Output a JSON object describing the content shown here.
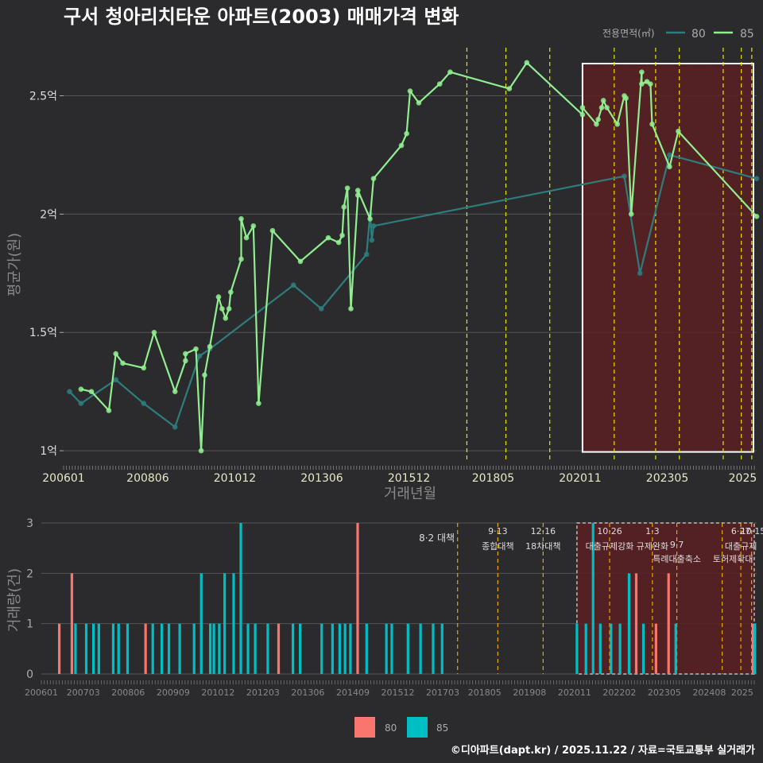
{
  "title": "구서 청아리치타운 아파트(2003) 매매가격 변화",
  "credit": "©디아파트(dapt.kr) / 2025.11.22 / 자료=국토교통부 실거래가",
  "colors": {
    "s80_line": "#2e7d7d",
    "s85_line": "#90ee90",
    "bar80": "#f8766d",
    "bar85": "#00bfc4",
    "policy_line": "#e6e600",
    "policy_line_bottom": "#e6a800",
    "highlight": "#5a1f22",
    "grid": "#555555"
  },
  "chart_data": [
    {
      "type": "line",
      "title": "구서 청아리치타운 아파트(2003) 매매가격 변화",
      "xlabel": "거래년월",
      "ylabel": "평균가(원)",
      "legend_title": "전용면적(㎡)",
      "legend_placement": "top-right",
      "x_ticks": [
        "200601",
        "200806",
        "201012",
        "201306",
        "201512",
        "201805",
        "202011",
        "202305",
        "2025"
      ],
      "y_ticks": [
        {
          "v": 1.0,
          "label": "1억"
        },
        {
          "v": 1.5,
          "label": "1.5억"
        },
        {
          "v": 2.0,
          "label": "2억"
        },
        {
          "v": 2.5,
          "label": "2.5억"
        }
      ],
      "xlim": [
        2006.0,
        2025.9
      ],
      "ylim": [
        0.95,
        2.72
      ],
      "highlight_range": [
        2020.9,
        2025.9
      ],
      "policy_dates": [
        2017.58,
        2018.7,
        2019.96,
        2021.81,
        2023.0,
        2023.68,
        2024.94,
        2025.46,
        2025.76
      ],
      "series": [
        {
          "name": "80",
          "points": [
            [
              2006.17,
              1.25
            ],
            [
              2006.5,
              1.2
            ],
            [
              2007.5,
              1.3
            ],
            [
              2008.3,
              1.2
            ],
            [
              2009.2,
              1.1
            ],
            [
              2009.9,
              1.4
            ],
            [
              2010.2,
              1.43
            ],
            [
              2012.6,
              1.7
            ],
            [
              2013.4,
              1.6
            ],
            [
              2014.7,
              1.83
            ],
            [
              2014.8,
              2.0
            ],
            [
              2014.85,
              1.89
            ],
            [
              2014.9,
              1.95
            ],
            [
              2022.1,
              2.16
            ],
            [
              2022.55,
              1.75
            ],
            [
              2023.4,
              2.25
            ],
            [
              2025.9,
              2.15
            ]
          ]
        },
        {
          "name": "85",
          "points": [
            [
              2006.5,
              1.26
            ],
            [
              2006.8,
              1.25
            ],
            [
              2007.3,
              1.17
            ],
            [
              2007.5,
              1.41
            ],
            [
              2007.7,
              1.37
            ],
            [
              2008.3,
              1.35
            ],
            [
              2008.6,
              1.5
            ],
            [
              2009.2,
              1.25
            ],
            [
              2009.5,
              1.38
            ],
            [
              2009.5,
              1.41
            ],
            [
              2009.8,
              1.43
            ],
            [
              2009.95,
              1.0
            ],
            [
              2010.05,
              1.32
            ],
            [
              2010.2,
              1.44
            ],
            [
              2010.45,
              1.65
            ],
            [
              2010.55,
              1.6
            ],
            [
              2010.65,
              1.56
            ],
            [
              2010.75,
              1.6
            ],
            [
              2010.8,
              1.67
            ],
            [
              2011.1,
              1.81
            ],
            [
              2011.1,
              1.98
            ],
            [
              2011.25,
              1.9
            ],
            [
              2011.45,
              1.95
            ],
            [
              2011.6,
              1.2
            ],
            [
              2012.0,
              1.93
            ],
            [
              2012.8,
              1.8
            ],
            [
              2013.6,
              1.9
            ],
            [
              2013.9,
              1.88
            ],
            [
              2014.0,
              1.91
            ],
            [
              2014.05,
              2.03
            ],
            [
              2014.15,
              2.11
            ],
            [
              2014.25,
              1.6
            ],
            [
              2014.45,
              2.08
            ],
            [
              2014.45,
              2.1
            ],
            [
              2014.8,
              1.98
            ],
            [
              2014.9,
              2.15
            ],
            [
              2015.7,
              2.29
            ],
            [
              2015.85,
              2.34
            ],
            [
              2015.95,
              2.52
            ],
            [
              2016.2,
              2.47
            ],
            [
              2016.8,
              2.55
            ],
            [
              2017.1,
              2.6
            ],
            [
              2018.8,
              2.53
            ],
            [
              2019.3,
              2.64
            ],
            [
              2020.9,
              2.42
            ],
            [
              2020.9,
              2.45
            ],
            [
              2021.3,
              2.38
            ],
            [
              2021.35,
              2.4
            ],
            [
              2021.45,
              2.45
            ],
            [
              2021.5,
              2.48
            ],
            [
              2021.6,
              2.45
            ],
            [
              2021.9,
              2.38
            ],
            [
              2022.1,
              2.5
            ],
            [
              2022.15,
              2.49
            ],
            [
              2022.3,
              2.0
            ],
            [
              2022.6,
              2.6
            ],
            [
              2022.6,
              2.55
            ],
            [
              2022.75,
              2.56
            ],
            [
              2022.85,
              2.55
            ],
            [
              2022.9,
              2.38
            ],
            [
              2023.4,
              2.2
            ],
            [
              2023.65,
              2.35
            ],
            [
              2025.9,
              1.99
            ]
          ]
        }
      ]
    },
    {
      "type": "bar",
      "xlabel": "",
      "ylabel": "거래량(건)",
      "legend_placement": "bottom",
      "legend": [
        "80",
        "85"
      ],
      "x_ticks": [
        "200601",
        "200703",
        "200806",
        "200909",
        "201012",
        "201203",
        "201306",
        "201409",
        "201512",
        "201703",
        "201805",
        "201908",
        "202011",
        "202202",
        "202305",
        "202408",
        "2025"
      ],
      "y_ticks": [
        0,
        1,
        2,
        3
      ],
      "xlim": [
        2006.0,
        2025.9
      ],
      "ylim": [
        0,
        3
      ],
      "highlight_range": [
        2020.9,
        2025.9
      ],
      "policy_dates": [
        2017.58,
        2018.7,
        2019.96,
        2021.81,
        2023.0,
        2023.68,
        2024.94,
        2025.46,
        2025.76
      ],
      "policy_labels": [
        {
          "date": "8·2",
          "text": "8·2 대책"
        },
        {
          "date": "9·13",
          "text": "종합대책"
        },
        {
          "date": "12·16",
          "text": "18차대책"
        },
        {
          "date": "10·26",
          "text": "대출규제강화"
        },
        {
          "date": "1·3",
          "text": "규제완화"
        },
        {
          "date": "9·7",
          "text": "특례대출축소"
        },
        {
          "date": "6·27",
          "text": "대출규제"
        },
        {
          "date": "10·15",
          "text": "토허제확대"
        }
      ],
      "bars": [
        {
          "t": 2006.5,
          "s": "80",
          "v": 1
        },
        {
          "t": 2006.85,
          "s": "80",
          "v": 2
        },
        {
          "t": 2006.95,
          "s": "85",
          "v": 1
        },
        {
          "t": 2007.25,
          "s": "85",
          "v": 1
        },
        {
          "t": 2007.45,
          "s": "85",
          "v": 1
        },
        {
          "t": 2007.6,
          "s": "85",
          "v": 1
        },
        {
          "t": 2008.0,
          "s": "85",
          "v": 1
        },
        {
          "t": 2008.15,
          "s": "85",
          "v": 1
        },
        {
          "t": 2008.4,
          "s": "85",
          "v": 1
        },
        {
          "t": 2008.9,
          "s": "80",
          "v": 1
        },
        {
          "t": 2009.1,
          "s": "85",
          "v": 1
        },
        {
          "t": 2009.35,
          "s": "85",
          "v": 1
        },
        {
          "t": 2009.55,
          "s": "85",
          "v": 1
        },
        {
          "t": 2009.85,
          "s": "85",
          "v": 1
        },
        {
          "t": 2010.25,
          "s": "85",
          "v": 1
        },
        {
          "t": 2010.45,
          "s": "85",
          "v": 2
        },
        {
          "t": 2010.7,
          "s": "85",
          "v": 1
        },
        {
          "t": 2010.8,
          "s": "85",
          "v": 1
        },
        {
          "t": 2010.95,
          "s": "85",
          "v": 1
        },
        {
          "t": 2011.1,
          "s": "85",
          "v": 2
        },
        {
          "t": 2011.35,
          "s": "85",
          "v": 2
        },
        {
          "t": 2011.55,
          "s": "85",
          "v": 3
        },
        {
          "t": 2011.75,
          "s": "85",
          "v": 1
        },
        {
          "t": 2011.95,
          "s": "85",
          "v": 1
        },
        {
          "t": 2012.3,
          "s": "85",
          "v": 1
        },
        {
          "t": 2012.6,
          "s": "80",
          "v": 1
        },
        {
          "t": 2013.0,
          "s": "85",
          "v": 1
        },
        {
          "t": 2013.2,
          "s": "85",
          "v": 1
        },
        {
          "t": 2013.8,
          "s": "85",
          "v": 1
        },
        {
          "t": 2014.1,
          "s": "85",
          "v": 1
        },
        {
          "t": 2014.3,
          "s": "85",
          "v": 1
        },
        {
          "t": 2014.45,
          "s": "85",
          "v": 1
        },
        {
          "t": 2014.6,
          "s": "85",
          "v": 1
        },
        {
          "t": 2014.8,
          "s": "80",
          "v": 3
        },
        {
          "t": 2015.05,
          "s": "85",
          "v": 1
        },
        {
          "t": 2015.6,
          "s": "85",
          "v": 1
        },
        {
          "t": 2015.75,
          "s": "85",
          "v": 1
        },
        {
          "t": 2016.2,
          "s": "85",
          "v": 1
        },
        {
          "t": 2016.55,
          "s": "85",
          "v": 1
        },
        {
          "t": 2016.9,
          "s": "85",
          "v": 1
        },
        {
          "t": 2017.15,
          "s": "85",
          "v": 1
        },
        {
          "t": 2020.9,
          "s": "85",
          "v": 1
        },
        {
          "t": 2021.15,
          "s": "85",
          "v": 1
        },
        {
          "t": 2021.35,
          "s": "85",
          "v": 3
        },
        {
          "t": 2021.55,
          "s": "85",
          "v": 1
        },
        {
          "t": 2021.85,
          "s": "85",
          "v": 1
        },
        {
          "t": 2022.1,
          "s": "85",
          "v": 1
        },
        {
          "t": 2022.35,
          "s": "85",
          "v": 2
        },
        {
          "t": 2022.55,
          "s": "80",
          "v": 2
        },
        {
          "t": 2022.75,
          "s": "85",
          "v": 1
        },
        {
          "t": 2023.1,
          "s": "80",
          "v": 1
        },
        {
          "t": 2023.45,
          "s": "80",
          "v": 2
        },
        {
          "t": 2023.65,
          "s": "85",
          "v": 1
        },
        {
          "t": 2025.8,
          "s": "80",
          "v": 1
        },
        {
          "t": 2025.85,
          "s": "85",
          "v": 1
        }
      ]
    }
  ]
}
